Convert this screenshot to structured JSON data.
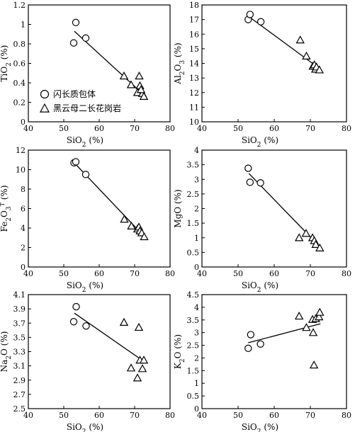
{
  "chart_data": [
    {
      "type": "scatter",
      "xlabel": "SiO2 (%)",
      "ylabel": "TiO2 (%)",
      "xlim": [
        40,
        80
      ],
      "ylim": [
        0,
        1.2
      ],
      "xticks": [
        "40",
        "50",
        "60",
        "70",
        "80"
      ],
      "yticks": [
        "0",
        "0.2",
        "0.4",
        "0.6",
        "0.8",
        "1",
        "1.2"
      ],
      "series": [
        {
          "name": "闪长质包体",
          "marker": "circle",
          "points": [
            [
              52.8,
              0.81
            ],
            [
              53.4,
              1.02
            ],
            [
              56.2,
              0.86
            ]
          ]
        },
        {
          "name": "黑云母二长花岗岩",
          "marker": "triangle",
          "points": [
            [
              67.0,
              0.47
            ],
            [
              69.0,
              0.38
            ],
            [
              70.8,
              0.3
            ],
            [
              71.3,
              0.47
            ],
            [
              71.5,
              0.37
            ],
            [
              72.2,
              0.29
            ],
            [
              72.6,
              0.26
            ],
            [
              71.8,
              0.33
            ]
          ]
        }
      ],
      "trendline": [
        [
          53.0,
          0.93
        ],
        [
          72.8,
          0.27
        ]
      ],
      "legend": "bottom-left"
    },
    {
      "type": "scatter",
      "xlabel": "SiO2 (%)",
      "ylabel": "Al2O3 (%)",
      "xlim": [
        40,
        80
      ],
      "ylim": [
        10,
        18
      ],
      "xticks": [
        "40",
        "50",
        "60",
        "70",
        "80"
      ],
      "yticks": [
        "10",
        "11",
        "12",
        "13",
        "14",
        "15",
        "16",
        "17",
        "18"
      ],
      "series": [
        {
          "name": "闪长质包体",
          "marker": "circle",
          "points": [
            [
              52.8,
              17.0
            ],
            [
              53.3,
              17.35
            ],
            [
              56.3,
              16.85
            ]
          ]
        },
        {
          "name": "黑云母二长花岗岩",
          "marker": "triangle",
          "points": [
            [
              67.2,
              15.6
            ],
            [
              68.9,
              14.5
            ],
            [
              70.7,
              13.8
            ],
            [
              71.1,
              13.9
            ],
            [
              71.4,
              13.6
            ],
            [
              71.7,
              13.75
            ],
            [
              72.5,
              13.55
            ]
          ]
        }
      ],
      "trendline": [
        [
          53.0,
          17.2
        ],
        [
          72.8,
          13.6
        ]
      ]
    },
    {
      "type": "scatter",
      "xlabel": "SiO2 (%)",
      "ylabel": "Fe2O3T (%)",
      "xlim": [
        40,
        80
      ],
      "ylim": [
        0,
        12
      ],
      "xticks": [
        "40",
        "50",
        "60",
        "70",
        "80"
      ],
      "yticks": [
        "0",
        "2",
        "4",
        "6",
        "8",
        "10",
        "12"
      ],
      "series": [
        {
          "name": "闪长质包体",
          "marker": "circle",
          "points": [
            [
              52.9,
              10.7
            ],
            [
              53.4,
              10.8
            ],
            [
              56.2,
              9.5
            ]
          ]
        },
        {
          "name": "黑云母二长花岗岩",
          "marker": "triangle",
          "points": [
            [
              67.1,
              4.9
            ],
            [
              69.1,
              4.2
            ],
            [
              70.8,
              3.9
            ],
            [
              71.2,
              4.1
            ],
            [
              71.5,
              3.7
            ],
            [
              72.0,
              3.5
            ],
            [
              72.7,
              3.1
            ]
          ]
        }
      ],
      "trendline": [
        [
          52.7,
          10.8
        ],
        [
          72.8,
          3.1
        ]
      ]
    },
    {
      "type": "scatter",
      "xlabel": "SiO2 (%)",
      "ylabel": "MgO (%)",
      "xlim": [
        40,
        80
      ],
      "ylim": [
        0,
        4
      ],
      "xticks": [
        "40",
        "50",
        "60",
        "70",
        "80"
      ],
      "yticks": [
        "0",
        "0.5",
        "1",
        "1.5",
        "2",
        "2.5",
        "3",
        "3.5",
        "4"
      ],
      "series": [
        {
          "name": "闪长质包体",
          "marker": "circle",
          "points": [
            [
              52.8,
              3.38
            ],
            [
              53.3,
              2.9
            ],
            [
              56.2,
              2.88
            ]
          ]
        },
        {
          "name": "黑云母二长花岗岩",
          "marker": "triangle",
          "points": [
            [
              66.9,
              1.0
            ],
            [
              68.8,
              1.15
            ],
            [
              70.6,
              1.0
            ],
            [
              71.1,
              0.9
            ],
            [
              71.5,
              0.77
            ],
            [
              72.6,
              0.65
            ]
          ]
        }
      ],
      "trendline": [
        [
          53.0,
          3.2
        ],
        [
          72.6,
          0.7
        ]
      ]
    },
    {
      "type": "scatter",
      "xlabel": "SiO2 (%)",
      "ylabel": "Na2O (%)",
      "xlim": [
        40,
        80
      ],
      "ylim": [
        2.5,
        4.1
      ],
      "xticks": [
        "40",
        "50",
        "60",
        "70",
        "80"
      ],
      "yticks": [
        "2.5",
        "2.7",
        "2.9",
        "3.1",
        "3.3",
        "3.5",
        "3.7",
        "3.9",
        "4.1"
      ],
      "series": [
        {
          "name": "闪长质包体",
          "marker": "circle",
          "points": [
            [
              52.8,
              3.72
            ],
            [
              53.5,
              3.93
            ],
            [
              56.3,
              3.66
            ]
          ]
        },
        {
          "name": "黑云母二长花岗岩",
          "marker": "triangle",
          "points": [
            [
              67.0,
              3.71
            ],
            [
              69.0,
              3.07
            ],
            [
              70.8,
              2.93
            ],
            [
              71.2,
              3.64
            ],
            [
              71.5,
              3.18
            ],
            [
              72.2,
              3.06
            ],
            [
              72.6,
              3.18
            ]
          ]
        }
      ],
      "trendline": [
        [
          53.0,
          3.84
        ],
        [
          72.4,
          3.17
        ]
      ]
    },
    {
      "type": "scatter",
      "xlabel": "SiO2 (%)",
      "ylabel": "K2O (%)",
      "xlim": [
        40,
        80
      ],
      "ylim": [
        0,
        4.5
      ],
      "xticks": [
        "40",
        "50",
        "60",
        "70",
        "80"
      ],
      "yticks": [
        "0",
        "0.5",
        "1",
        "1.5",
        "2",
        "2.5",
        "3",
        "3.5",
        "4",
        "4.5"
      ],
      "series": [
        {
          "name": "闪长质包体",
          "marker": "circle",
          "points": [
            [
              52.8,
              2.38
            ],
            [
              53.5,
              2.92
            ],
            [
              56.2,
              2.55
            ]
          ]
        },
        {
          "name": "黑云母二长花岗岩",
          "marker": "triangle",
          "points": [
            [
              66.9,
              3.65
            ],
            [
              68.9,
              3.2
            ],
            [
              70.6,
              3.52
            ],
            [
              70.8,
              3.0
            ],
            [
              71.0,
              1.72
            ],
            [
              71.5,
              3.55
            ],
            [
              72.4,
              3.62
            ],
            [
              72.6,
              3.8
            ]
          ]
        }
      ],
      "trendline": [
        [
          52.8,
          2.6
        ],
        [
          72.8,
          3.35
        ]
      ]
    }
  ]
}
